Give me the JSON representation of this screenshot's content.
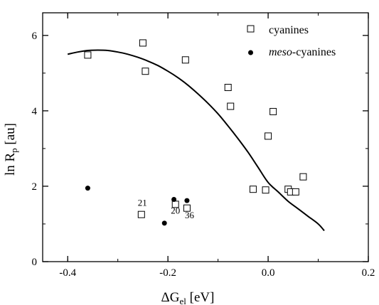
{
  "chart_data": {
    "type": "scatter",
    "xlabel_main": "ΔG",
    "xlabel_sub": "el",
    "xlabel_unit": " [eV]",
    "ylabel_main": "ln R",
    "ylabel_sub": "p",
    "ylabel_unit": " [au]",
    "xlim": [
      -0.45,
      0.2
    ],
    "ylim": [
      0,
      6.6
    ],
    "x_ticks": [
      -0.4,
      -0.2,
      0.0,
      0.2
    ],
    "x_tick_labels": [
      "-0.4",
      "-0.2",
      "0.0",
      "0.2"
    ],
    "y_ticks": [
      0,
      2,
      4,
      6
    ],
    "y_tick_labels": [
      "0",
      "2",
      "4",
      "6"
    ],
    "legend_position": "top-right",
    "series": [
      {
        "name": "cyanines",
        "marker": "open-square",
        "points": [
          {
            "x": -0.36,
            "y": 5.48
          },
          {
            "x": -0.25,
            "y": 5.8
          },
          {
            "x": -0.245,
            "y": 5.05
          },
          {
            "x": -0.165,
            "y": 5.35
          },
          {
            "x": -0.08,
            "y": 4.62
          },
          {
            "x": -0.075,
            "y": 4.12
          },
          {
            "x": 0.01,
            "y": 3.98
          },
          {
            "x": 0.0,
            "y": 3.33
          },
          {
            "x": -0.03,
            "y": 1.92
          },
          {
            "x": -0.005,
            "y": 1.9
          },
          {
            "x": 0.04,
            "y": 1.92
          },
          {
            "x": 0.045,
            "y": 1.85
          },
          {
            "x": 0.055,
            "y": 1.85
          },
          {
            "x": 0.07,
            "y": 2.25
          },
          {
            "x": -0.253,
            "y": 1.25
          },
          {
            "x": -0.185,
            "y": 1.52
          },
          {
            "x": -0.162,
            "y": 1.42
          }
        ]
      },
      {
        "name": "meso-cyanines",
        "name_italic": "meso",
        "name_rest": "-cyanines",
        "marker": "filled-circle",
        "points": [
          {
            "x": -0.36,
            "y": 1.95
          },
          {
            "x": -0.207,
            "y": 1.02
          },
          {
            "x": -0.188,
            "y": 1.65
          },
          {
            "x": -0.162,
            "y": 1.62
          }
        ]
      }
    ],
    "fit_curve": {
      "points": [
        [
          -0.4,
          5.5
        ],
        [
          -0.38,
          5.56
        ],
        [
          -0.36,
          5.6
        ],
        [
          -0.34,
          5.61
        ],
        [
          -0.32,
          5.6
        ],
        [
          -0.3,
          5.56
        ],
        [
          -0.28,
          5.5
        ],
        [
          -0.26,
          5.42
        ],
        [
          -0.24,
          5.32
        ],
        [
          -0.22,
          5.2
        ],
        [
          -0.2,
          5.05
        ],
        [
          -0.18,
          4.88
        ],
        [
          -0.16,
          4.68
        ],
        [
          -0.14,
          4.45
        ],
        [
          -0.12,
          4.2
        ],
        [
          -0.1,
          3.92
        ],
        [
          -0.08,
          3.6
        ],
        [
          -0.06,
          3.26
        ],
        [
          -0.04,
          2.9
        ],
        [
          -0.02,
          2.5
        ],
        [
          0.0,
          2.1
        ],
        [
          0.02,
          1.85
        ],
        [
          0.04,
          1.6
        ],
        [
          0.06,
          1.4
        ],
        [
          0.08,
          1.2
        ],
        [
          0.1,
          1.0
        ],
        [
          0.112,
          0.82
        ]
      ]
    },
    "annotations": [
      {
        "text": "21",
        "x": -0.251,
        "y": 1.48
      },
      {
        "text": "20",
        "x": -0.185,
        "y": 1.27
      },
      {
        "text": "36",
        "x": -0.157,
        "y": 1.15
      }
    ]
  }
}
